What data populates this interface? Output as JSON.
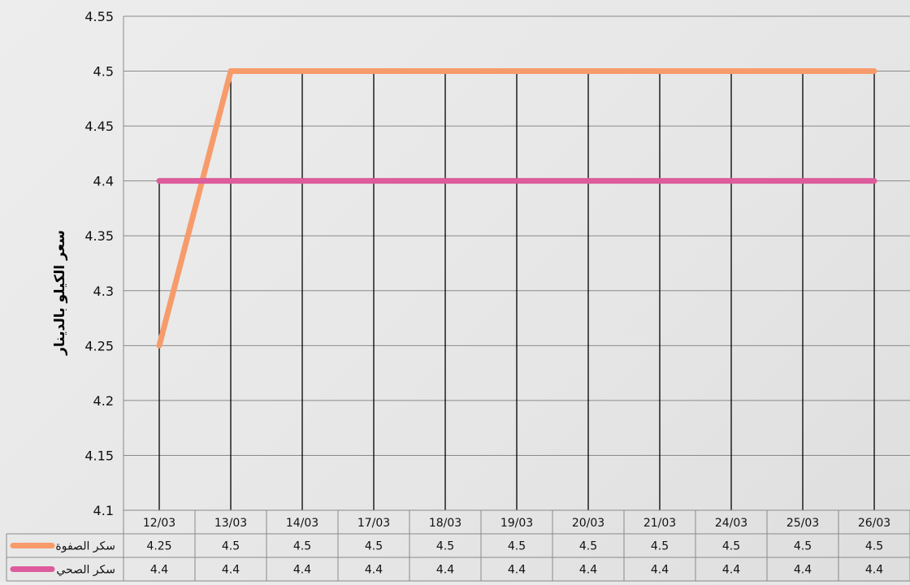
{
  "chart_data": {
    "type": "line",
    "title": "",
    "xlabel": "",
    "ylabel": "سعر الكيلو بالدينار",
    "categories": [
      "12/03",
      "13/03",
      "14/03",
      "17/03",
      "18/03",
      "19/03",
      "20/03",
      "21/03",
      "24/03",
      "25/03",
      "26/03"
    ],
    "ylim": [
      4.1,
      4.55
    ],
    "yticks": [
      "4.1",
      "4.15",
      "4.2",
      "4.25",
      "4.3",
      "4.35",
      "4.4",
      "4.45",
      "4.5",
      "4.55"
    ],
    "grid": true,
    "data_table": true,
    "series": [
      {
        "name": "سكر الصفوة",
        "color": "#f79b6b",
        "values": [
          4.25,
          4.5,
          4.5,
          4.5,
          4.5,
          4.5,
          4.5,
          4.5,
          4.5,
          4.5,
          4.5
        ],
        "labels": [
          "4.25",
          "4.5",
          "4.5",
          "4.5",
          "4.5",
          "4.5",
          "4.5",
          "4.5",
          "4.5",
          "4.5",
          "4.5"
        ]
      },
      {
        "name": "سكر الصحي",
        "color": "#dd5c9c",
        "values": [
          4.4,
          4.4,
          4.4,
          4.4,
          4.4,
          4.4,
          4.4,
          4.4,
          4.4,
          4.4,
          4.4
        ],
        "labels": [
          "4.4",
          "4.4",
          "4.4",
          "4.4",
          "4.4",
          "4.4",
          "4.4",
          "4.4",
          "4.4",
          "4.4",
          "4.4"
        ]
      }
    ]
  }
}
